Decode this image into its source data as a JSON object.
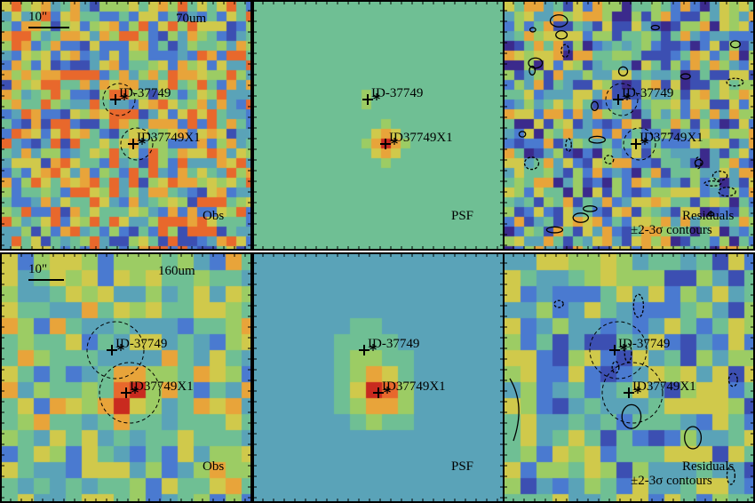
{
  "panels": [
    {
      "band": "70um",
      "scale_label": "10\"",
      "corner_label": "Obs",
      "sources": [
        "ID-37749",
        "ID37749X1"
      ],
      "type": "obs",
      "contours": false
    },
    {
      "corner_label": "PSF",
      "sources": [
        "ID-37749",
        "ID37749X1"
      ],
      "type": "psf",
      "contours": false
    },
    {
      "corner_label_1": "Residuals",
      "corner_label_2": "±2-3σ contours",
      "sources": [
        "ID-37749",
        "ID37749X1"
      ],
      "type": "residual",
      "contours": true
    },
    {
      "band": "160um",
      "scale_label": "10\"",
      "corner_label": "Obs",
      "sources": [
        "ID-37749",
        "ID37749X1"
      ],
      "type": "obs",
      "contours": false
    },
    {
      "corner_label": "PSF",
      "sources": [
        "ID-37749",
        "ID37749X1"
      ],
      "type": "psf",
      "contours": false
    },
    {
      "corner_label_1": "Residuals",
      "corner_label_2": "±2-3σ contours",
      "sources": [
        "ID-37749",
        "ID37749X1"
      ],
      "type": "residual",
      "contours": true
    }
  ],
  "colormap": [
    "#3b2a8c",
    "#3c4fb2",
    "#4a7ad0",
    "#5aa3b8",
    "#6fbf94",
    "#9ccc64",
    "#d0c94b",
    "#e8a43a",
    "#e8682c",
    "#c92a1f"
  ],
  "icons": [
    "plus-marker",
    "asterisk-marker",
    "dashed-circle"
  ]
}
